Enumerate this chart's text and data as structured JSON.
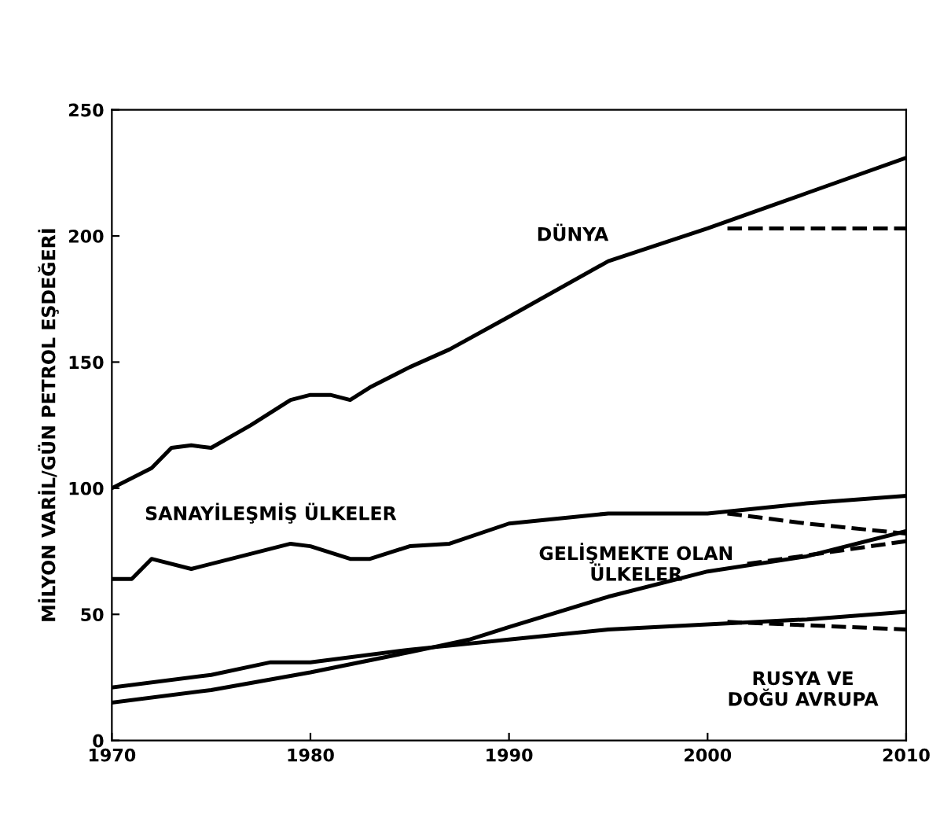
{
  "chart_data": {
    "type": "line",
    "ylabel": "MİLYON VARİL/GÜN PETROL EŞDEĞERİ",
    "xlim": [
      1970,
      2010
    ],
    "xticks": [
      1970,
      1980,
      1990,
      2000,
      2010
    ],
    "ylim": [
      0,
      250
    ],
    "yticks": [
      0,
      50,
      100,
      150,
      200,
      250
    ],
    "grid": false,
    "legend": false,
    "marker": "none",
    "series": [
      {
        "name": "DÜNYA",
        "color": "#000000",
        "x": [
          1970,
          1972,
          1973,
          1974,
          1975,
          1977,
          1979,
          1980,
          1981,
          1982,
          1983,
          1985,
          1987,
          1990,
          1995,
          2000,
          2005,
          2010
        ],
        "values": [
          100,
          108,
          116,
          117,
          116,
          125,
          135,
          137,
          137,
          135,
          140,
          148,
          155,
          168,
          190,
          203,
          217,
          231
        ]
      },
      {
        "color": "#000000",
        "line_style": "dashed",
        "x": [
          2001,
          2010
        ],
        "values": [
          203,
          203
        ]
      },
      {
        "name": "SANAYİLEŞMİŞ ÜLKELER",
        "color": "#000000",
        "x": [
          1970,
          1971,
          1972,
          1974,
          1976,
          1979,
          1980,
          1982,
          1983,
          1985,
          1987,
          1990,
          1995,
          2000,
          2005,
          2010
        ],
        "values": [
          64,
          64,
          72,
          68,
          72,
          78,
          77,
          72,
          72,
          77,
          78,
          86,
          90,
          90,
          94,
          97
        ]
      },
      {
        "color": "#000000",
        "line_style": "dashed",
        "x": [
          2001,
          2005,
          2010
        ],
        "values": [
          90,
          86,
          82
        ]
      },
      {
        "name": "GELİŞMEKTE OLAN\nÜLKELER",
        "color": "#000000",
        "x": [
          1970,
          1975,
          1980,
          1985,
          1988,
          1990,
          1995,
          2000,
          2005,
          2010
        ],
        "values": [
          15,
          20,
          27,
          35,
          40,
          45,
          57,
          67,
          73,
          83
        ]
      },
      {
        "color": "#000000",
        "line_style": "dashed",
        "x": [
          2002,
          2010
        ],
        "values": [
          70,
          79
        ]
      },
      {
        "name": "RUSYA VE\nDOĞU AVRUPA",
        "color": "#000000",
        "x": [
          1970,
          1975,
          1978,
          1980,
          1985,
          1990,
          1995,
          2000,
          2005,
          2010
        ],
        "values": [
          21,
          26,
          31,
          31,
          36,
          40,
          44,
          46,
          48,
          51
        ]
      },
      {
        "color": "#000000",
        "line_style": "dashed",
        "x": [
          2001,
          2010
        ],
        "values": [
          47,
          44
        ]
      }
    ]
  }
}
